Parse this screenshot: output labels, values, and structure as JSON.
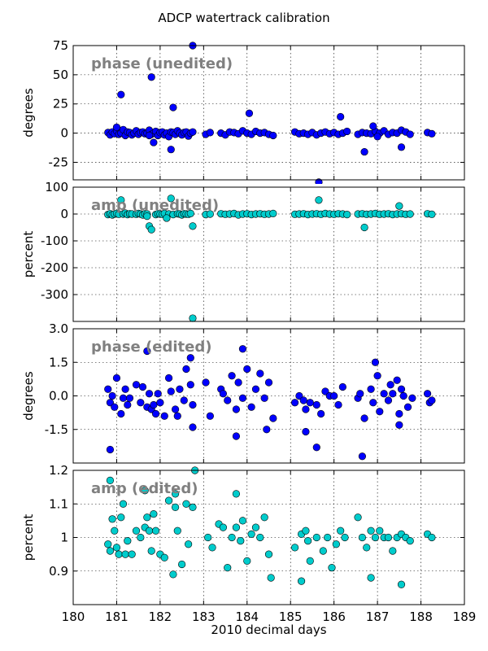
{
  "figure": {
    "title": "ADCP watertrack calibration",
    "xlabel": "2010 decimal days"
  },
  "chart_data": [
    {
      "type": "scatter",
      "label": "phase (unedited)",
      "ylabel": "degrees",
      "color": "#0000ff",
      "xlim": [
        180,
        189
      ],
      "ylim": [
        -40,
        75
      ],
      "yticks": [
        -25,
        0,
        25,
        50,
        75
      ],
      "xticks": [
        180,
        181,
        182,
        183,
        184,
        185,
        186,
        187,
        188,
        189
      ],
      "grid": true,
      "x": [
        180.8,
        180.85,
        180.9,
        180.95,
        181.0,
        181.05,
        181.1,
        181.15,
        181.2,
        181.25,
        181.3,
        181.35,
        181.4,
        181.45,
        181.5,
        181.55,
        181.6,
        181.65,
        181.7,
        181.75,
        181.8,
        181.85,
        181.9,
        181.95,
        182.0,
        182.05,
        182.1,
        182.15,
        182.2,
        182.25,
        182.3,
        182.35,
        182.4,
        182.45,
        182.5,
        182.55,
        182.6,
        182.65,
        182.7,
        182.75,
        183.05,
        183.15,
        183.4,
        183.5,
        183.6,
        183.7,
        183.8,
        183.9,
        184.0,
        184.1,
        184.2,
        184.3,
        184.4,
        184.5,
        184.6,
        185.1,
        185.2,
        185.3,
        185.4,
        185.5,
        185.6,
        185.7,
        185.8,
        185.9,
        186.0,
        186.1,
        186.2,
        186.3,
        186.55,
        186.65,
        186.75,
        186.85,
        186.95,
        187.05,
        187.15,
        187.25,
        187.35,
        187.45,
        187.55,
        187.65,
        187.75,
        188.15,
        188.25,
        181.1,
        181.8,
        181.85,
        182.3,
        182.75,
        184.05,
        185.65,
        186.15,
        186.7,
        186.9,
        187.55,
        181.75,
        182.25,
        181.0,
        187.0
      ],
      "y": [
        0.5,
        -1.5,
        1.0,
        -0.5,
        2.0,
        -1.0,
        0.0,
        3.0,
        -2.0,
        1.0,
        0.5,
        -1.5,
        0.0,
        2.0,
        -1.0,
        0.5,
        1.0,
        -0.5,
        0.0,
        2.5,
        -1.0,
        0.0,
        1.5,
        -2.0,
        0.5,
        1.0,
        -1.5,
        0.0,
        -3.0,
        1.0,
        0.5,
        -1.0,
        2.0,
        0.0,
        -1.5,
        0.5,
        1.0,
        -2.5,
        0.0,
        1.0,
        -1.0,
        0.5,
        0.0,
        -1.5,
        1.0,
        0.5,
        -0.5,
        2.0,
        0.0,
        -1.0,
        1.5,
        0.0,
        0.5,
        -1.0,
        -2.0,
        1.0,
        -0.5,
        0.0,
        -1.0,
        0.5,
        -1.5,
        0.0,
        1.0,
        -0.5,
        0.5,
        -1.0,
        0.0,
        1.5,
        -1.0,
        0.5,
        0.0,
        -0.5,
        1.5,
        0.0,
        2.0,
        -1.0,
        0.5,
        0.0,
        2.5,
        1.0,
        -1.0,
        0.5,
        -0.5,
        33,
        48,
        -8,
        22,
        75,
        17,
        -42,
        14,
        -16,
        6,
        -12,
        -2,
        -14,
        5,
        -3
      ]
    },
    {
      "type": "scatter",
      "label": "amp (unedited)",
      "ylabel": "percent",
      "color": "#00cccc",
      "xlim": [
        180,
        189
      ],
      "ylim": [
        -400,
        100
      ],
      "yticks": [
        -300,
        -200,
        -100,
        0,
        100
      ],
      "xticks": [
        180,
        181,
        182,
        183,
        184,
        185,
        186,
        187,
        188,
        189
      ],
      "grid": true,
      "x": [
        180.8,
        180.85,
        180.9,
        180.95,
        181.0,
        181.05,
        181.15,
        181.2,
        181.25,
        181.3,
        181.35,
        181.45,
        181.5,
        181.55,
        181.6,
        181.65,
        181.7,
        181.9,
        181.95,
        182.0,
        182.05,
        182.1,
        182.2,
        182.3,
        182.4,
        182.45,
        182.5,
        182.55,
        182.6,
        182.65,
        182.7,
        183.05,
        183.15,
        183.4,
        183.5,
        183.6,
        183.7,
        183.8,
        183.9,
        184.0,
        184.1,
        184.2,
        184.3,
        184.4,
        184.5,
        184.6,
        185.1,
        185.2,
        185.3,
        185.4,
        185.5,
        185.6,
        185.7,
        185.8,
        185.9,
        186.0,
        186.1,
        186.2,
        186.3,
        186.55,
        186.65,
        186.75,
        186.85,
        186.95,
        187.05,
        187.15,
        187.25,
        187.35,
        187.45,
        187.55,
        187.65,
        187.75,
        188.15,
        188.25,
        181.1,
        181.7,
        181.75,
        181.8,
        182.15,
        182.25,
        182.75,
        182.75,
        185.65,
        186.7,
        187.5
      ],
      "y": [
        -2,
        1,
        -3,
        0,
        2,
        -1,
        0,
        3,
        -2,
        1,
        0,
        -1,
        2,
        0,
        -3,
        1,
        0,
        -2,
        1,
        0,
        -1,
        2,
        0,
        -2,
        1,
        0,
        -3,
        1,
        0,
        -1,
        2,
        -2,
        0,
        1,
        -1,
        0,
        2,
        -3,
        0,
        1,
        -2,
        0,
        1,
        -1,
        0,
        2,
        -1,
        0,
        1,
        -2,
        0,
        1,
        -1,
        2,
        0,
        -1,
        1,
        0,
        -2,
        0,
        1,
        -1,
        0,
        2,
        -1,
        0,
        1,
        -2,
        0,
        1,
        -1,
        0,
        1,
        -1,
        52,
        -8,
        -45,
        -58,
        -15,
        58,
        -45,
        -388,
        52,
        -50,
        30
      ]
    },
    {
      "type": "scatter",
      "label": "phase (edited)",
      "ylabel": "degrees",
      "color": "#0000ff",
      "xlim": [
        180,
        189
      ],
      "ylim": [
        -3.0,
        3.0
      ],
      "yticks": [
        -1.5,
        0.0,
        1.5,
        3.0
      ],
      "xticks": [
        180,
        181,
        182,
        183,
        184,
        185,
        186,
        187,
        188,
        189
      ],
      "grid": true,
      "x": [
        180.8,
        180.85,
        180.9,
        180.95,
        181.0,
        181.1,
        181.15,
        181.2,
        181.25,
        181.3,
        181.45,
        181.55,
        181.6,
        181.7,
        181.75,
        181.8,
        181.85,
        181.9,
        181.95,
        182.0,
        182.1,
        182.2,
        182.25,
        182.35,
        182.4,
        182.45,
        182.55,
        182.6,
        182.7,
        182.75,
        183.05,
        183.15,
        183.4,
        183.45,
        183.55,
        183.65,
        183.75,
        183.8,
        183.9,
        184.0,
        184.1,
        184.2,
        184.3,
        184.4,
        184.5,
        184.6,
        185.1,
        185.2,
        185.3,
        185.35,
        185.45,
        185.6,
        185.7,
        185.8,
        185.9,
        186.0,
        186.1,
        186.2,
        186.55,
        186.6,
        186.7,
        186.85,
        186.9,
        187.0,
        187.05,
        187.15,
        187.25,
        187.3,
        187.35,
        187.45,
        187.5,
        187.55,
        187.6,
        187.7,
        187.8,
        188.15,
        188.2,
        188.25,
        180.85,
        181.7,
        182.7,
        182.75,
        183.75,
        183.9,
        184.45,
        185.35,
        185.6,
        186.65,
        186.95,
        187.5
      ],
      "y": [
        0.3,
        -0.3,
        0.0,
        -0.5,
        0.8,
        -0.8,
        -0.1,
        0.3,
        -0.4,
        -0.1,
        0.5,
        -0.3,
        0.4,
        -0.5,
        0.1,
        -0.6,
        -0.4,
        -0.8,
        0.1,
        -0.3,
        -0.9,
        0.8,
        0.2,
        -0.6,
        -0.9,
        0.3,
        -0.2,
        1.2,
        0.5,
        -0.4,
        0.6,
        -0.9,
        0.3,
        0.1,
        -0.2,
        0.9,
        -0.6,
        0.6,
        -0.1,
        1.2,
        -0.5,
        0.3,
        1.0,
        -0.1,
        0.6,
        -1.0,
        -0.3,
        0.0,
        -0.2,
        -0.6,
        -0.3,
        -0.4,
        -0.8,
        0.2,
        0.0,
        0.0,
        -0.4,
        0.4,
        -0.1,
        0.1,
        -1.0,
        0.3,
        -0.3,
        0.9,
        -0.7,
        0.1,
        -0.2,
        0.5,
        0.1,
        0.7,
        -0.8,
        0.3,
        0.0,
        -0.5,
        -0.1,
        0.1,
        -0.3,
        -0.2,
        -2.4,
        2.0,
        1.7,
        -1.4,
        -1.8,
        2.1,
        -1.5,
        -1.6,
        -2.3,
        -2.7,
        1.5,
        -1.3
      ]
    },
    {
      "type": "scatter",
      "label": "amp (edited)",
      "ylabel": "percent",
      "color": "#00cccc",
      "xlim": [
        180,
        189
      ],
      "ylim": [
        0.8,
        1.2
      ],
      "yticks": [
        0.9,
        1.0,
        1.1,
        1.2
      ],
      "xticks": [
        180,
        181,
        182,
        183,
        184,
        185,
        186,
        187,
        188,
        189
      ],
      "grid": true,
      "x": [
        180.8,
        180.85,
        180.9,
        180.95,
        181.0,
        181.05,
        181.1,
        181.15,
        181.2,
        181.25,
        181.35,
        181.45,
        181.55,
        181.65,
        181.7,
        181.75,
        181.8,
        181.85,
        181.9,
        182.0,
        182.1,
        182.2,
        182.3,
        182.35,
        182.4,
        182.5,
        182.6,
        182.65,
        182.75,
        183.1,
        183.2,
        183.35,
        183.45,
        183.55,
        183.65,
        183.75,
        183.85,
        183.9,
        184.0,
        184.1,
        184.2,
        184.3,
        184.4,
        184.5,
        184.55,
        185.1,
        185.25,
        185.35,
        185.4,
        185.45,
        185.6,
        185.75,
        185.85,
        185.95,
        186.05,
        186.15,
        186.25,
        186.55,
        186.65,
        186.75,
        186.85,
        186.95,
        187.05,
        187.15,
        187.25,
        187.35,
        187.45,
        187.55,
        187.65,
        187.75,
        188.15,
        188.25,
        180.85,
        181.65,
        182.35,
        182.8,
        183.75,
        185.25,
        186.85,
        187.55
      ],
      "y": [
        0.98,
        0.96,
        1.055,
        1.02,
        0.97,
        0.95,
        1.06,
        1.1,
        0.95,
        0.99,
        0.95,
        1.02,
        1.0,
        1.03,
        1.06,
        1.02,
        0.96,
        1.07,
        1.02,
        0.95,
        0.94,
        1.11,
        0.89,
        1.09,
        1.02,
        0.92,
        1.1,
        0.98,
        1.09,
        1.0,
        0.97,
        1.04,
        1.03,
        0.91,
        1.0,
        1.03,
        0.99,
        1.05,
        0.93,
        1.01,
        1.03,
        1.0,
        1.06,
        0.95,
        0.88,
        0.97,
        1.01,
        1.02,
        0.99,
        0.93,
        1.0,
        0.96,
        1.0,
        0.91,
        0.98,
        1.02,
        1.0,
        1.06,
        1.0,
        0.97,
        1.02,
        1.0,
        1.02,
        1.0,
        1.0,
        0.96,
        1.0,
        1.01,
        1.0,
        0.99,
        1.01,
        1.0,
        1.17,
        1.14,
        1.13,
        1.2,
        1.13,
        0.87,
        0.88,
        0.86
      ]
    }
  ]
}
